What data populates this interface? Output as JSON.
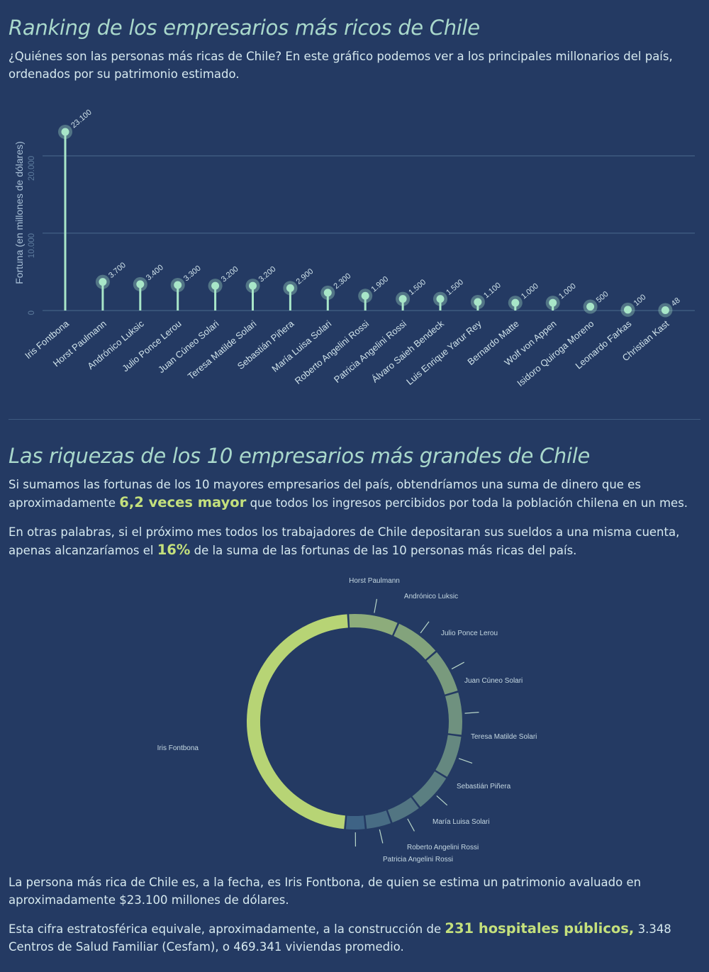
{
  "section1": {
    "title": "Ranking de los empresarios más ricos de Chile",
    "description": "¿Quiénes son las personas más ricas de Chile? En este gráfico podemos ver a los principales millonarios del país, ordenados por su patrimonio estimado."
  },
  "section2": {
    "title": "Las riquezas de los 10 empresarios más grandes de Chile",
    "para1": {
      "before": "Si sumamos las fortunas de los 10 mayores empresarios del país, obtendríamos una suma de dinero que es aproximadamente ",
      "highlight": "6,2 veces mayor",
      "after": " que todos los ingresos percibidos por toda la población chilena en un mes."
    },
    "para2": {
      "before": "En otras palabras, si el próximo mes todos los trabajadores de Chile depositaran sus sueldos a una misma cuenta, apenas alcanzaríamos el ",
      "highlight": "16%",
      "after": " de la suma de las fortunas de las 10 personas más ricas del país."
    },
    "para3": "La persona más rica de Chile es, a la fecha, es Iris Fontbona, de quien se estima un patrimonio avaluado en aproximadamente $23.100 millones de dólares.",
    "para4": {
      "before": "Esta cifra estratosférica equivale, aproximadamente, a la construcción de ",
      "highlight": "231 hospitales públicos,",
      "after": " 3.348 Centros de Salud Familiar (Cesfam), o 469.341 viviendas promedio."
    }
  },
  "colors": {
    "background": "#243a63",
    "lollipop": "#a8e6c8",
    "grid": "#4a6a8e",
    "highlight": "#c4e07c",
    "donut_top": "#b7d475",
    "donut_low": "#3e6385"
  },
  "chart_data": [
    {
      "type": "lollipop",
      "ylabel": "Fortuna (en millones de dólares)",
      "ylim": [
        0,
        23100
      ],
      "yticks": [
        0,
        10000,
        20000
      ],
      "ytick_labels": [
        "0",
        "10.000",
        "20.000"
      ],
      "grid": true,
      "categories": [
        "Iris Fontbona",
        "Horst Paulmann",
        "Andrónico Luksic",
        "Julio Ponce Lerou",
        "Juan Cúneo Solari",
        "Teresa Matilde Solari",
        "Sebastián Piñera",
        "María Luisa Solari",
        "Roberto Angelini Rossi",
        "Patricia Angelini Rossi",
        "Álvaro Saieh Bendeck",
        "Luis Enrique Yarur Rey",
        "Bernardo Matte",
        "Wolf von Appen",
        "Isidoro Quiroga Moreno",
        "Leonardo Farkas",
        "Christian Kast"
      ],
      "values": [
        23100,
        3700,
        3400,
        3300,
        3200,
        3200,
        2900,
        2300,
        1900,
        1500,
        1500,
        1100,
        1000,
        1000,
        500,
        100,
        48
      ],
      "value_labels": [
        "23.100",
        "3.700",
        "3.400",
        "3.300",
        "3.200",
        "3.200",
        "2.900",
        "2.300",
        "1.900",
        "1.500",
        "1.500",
        "1.100",
        "1.000",
        "1.000",
        "500",
        "100",
        "48"
      ]
    },
    {
      "type": "pie",
      "donut": true,
      "categories": [
        "Iris Fontbona",
        "Horst Paulmann",
        "Andrónico Luksic",
        "Julio Ponce Lerou",
        "Juan Cúneo Solari",
        "Teresa Matilde Solari",
        "Sebastián Piñera",
        "María Luisa Solari",
        "Roberto Angelini Rossi",
        "Patricia Angelini Rossi"
      ],
      "values": [
        23100,
        3700,
        3400,
        3300,
        3200,
        3200,
        2900,
        2300,
        1900,
        1500
      ]
    }
  ]
}
